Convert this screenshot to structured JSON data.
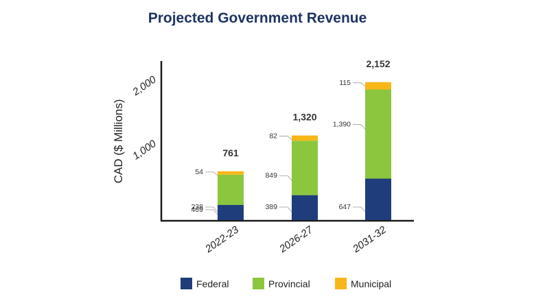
{
  "chart_data": {
    "type": "bar",
    "stacked": true,
    "title": "Projected Government Revenue",
    "ylabel": "CAD ($ Millions)",
    "xlabel": "",
    "ylim": [
      0,
      2500
    ],
    "yticks": [
      1000,
      2000
    ],
    "ytick_labels": [
      "1,000",
      "2,000"
    ],
    "grid": false,
    "legend": "bottom",
    "categories": [
      "2022-23",
      "2026-27",
      "2031-32"
    ],
    "totals": [
      761,
      1320,
      2152
    ],
    "total_labels": [
      "761",
      "1,320",
      "2,152"
    ],
    "series": [
      {
        "name": "Federal",
        "color": "#1f3d7a",
        "values": [
          238,
          389,
          647
        ],
        "labels": [
          "238",
          "389",
          "647"
        ]
      },
      {
        "name": "Provincial",
        "color": "#8cc63f",
        "values": [
          469,
          849,
          1390
        ],
        "labels": [
          "469",
          "849",
          "1,390"
        ]
      },
      {
        "name": "Municipal",
        "color": "#f7b718",
        "values": [
          54,
          82,
          115
        ],
        "labels": [
          "54",
          "82",
          "115"
        ]
      }
    ]
  }
}
